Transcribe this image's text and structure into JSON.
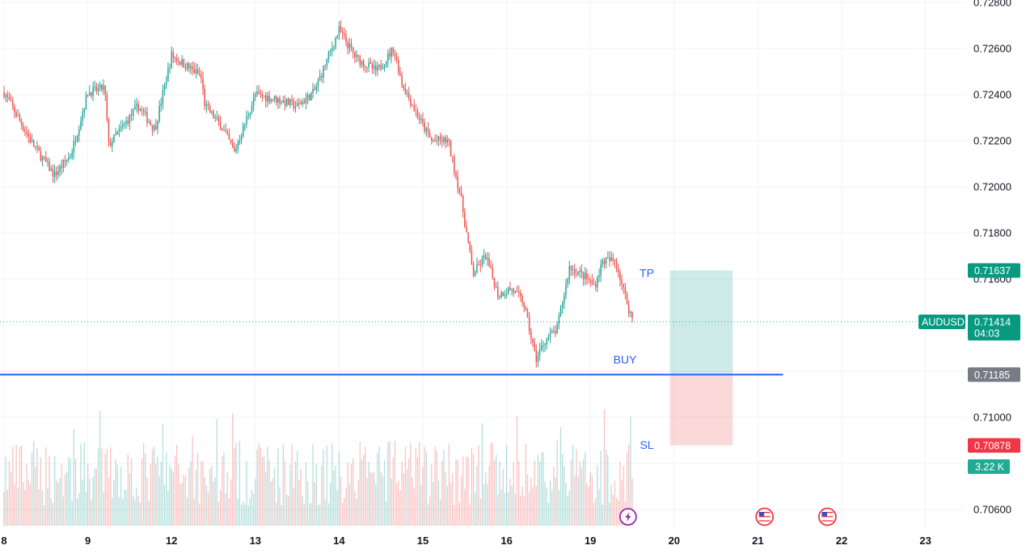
{
  "chart_data": {
    "type": "candlestick",
    "symbol": "AUDUSD",
    "y_axis": {
      "min": 0.7053,
      "max": 0.7281,
      "ticks": [
        {
          "value": 0.728,
          "label": "0.72800"
        },
        {
          "value": 0.726,
          "label": "0.72600"
        },
        {
          "value": 0.724,
          "label": "0.72400"
        },
        {
          "value": 0.722,
          "label": "0.72200"
        },
        {
          "value": 0.72,
          "label": "0.72000"
        },
        {
          "value": 0.718,
          "label": "0.71800"
        },
        {
          "value": 0.716,
          "label": "0.71600"
        },
        {
          "value": 0.71,
          "label": "0.71000"
        },
        {
          "value": 0.706,
          "label": "0.70600"
        }
      ],
      "partial_label": "0"
    },
    "x_axis": {
      "labels": [
        "8",
        "9",
        "12",
        "13",
        "14",
        "15",
        "16",
        "19",
        "20",
        "21",
        "22",
        "23"
      ]
    },
    "grid": true,
    "price_path": [
      [
        0,
        0.7241
      ],
      [
        0.35,
        0.7218
      ],
      [
        0.6,
        0.7205
      ],
      [
        0.8,
        0.7214
      ],
      [
        1.0,
        0.7241
      ],
      [
        1.2,
        0.7243
      ],
      [
        1.25,
        0.7218
      ],
      [
        1.6,
        0.7235
      ],
      [
        1.8,
        0.7225
      ],
      [
        2.0,
        0.7257
      ],
      [
        2.35,
        0.7248
      ],
      [
        2.4,
        0.7235
      ],
      [
        2.6,
        0.7226
      ],
      [
        2.75,
        0.7215
      ],
      [
        3.0,
        0.724
      ],
      [
        3.25,
        0.7238
      ],
      [
        3.5,
        0.7235
      ],
      [
        3.7,
        0.7241
      ],
      [
        4.0,
        0.7268
      ],
      [
        4.2,
        0.7256
      ],
      [
        4.45,
        0.725
      ],
      [
        4.65,
        0.726
      ],
      [
        4.75,
        0.7245
      ],
      [
        4.95,
        0.723
      ],
      [
        5.1,
        0.722
      ],
      [
        5.3,
        0.722
      ],
      [
        5.45,
        0.7196
      ],
      [
        5.6,
        0.7162
      ],
      [
        5.75,
        0.717
      ],
      [
        5.9,
        0.7153
      ],
      [
        6.05,
        0.7156
      ],
      [
        6.2,
        0.715
      ],
      [
        6.35,
        0.7125
      ],
      [
        6.45,
        0.7133
      ],
      [
        6.6,
        0.7138
      ],
      [
        6.75,
        0.7165
      ],
      [
        6.9,
        0.7162
      ],
      [
        7.05,
        0.7157
      ],
      [
        7.15,
        0.7168
      ],
      [
        7.3,
        0.7168
      ],
      [
        7.45,
        0.7148
      ],
      [
        7.5,
        0.7143
      ]
    ],
    "last_price": {
      "label": "AUDUSD",
      "value": "0.71414",
      "countdown": "04:03",
      "numeric": 0.71414
    },
    "levels": {
      "take_profit": {
        "label": "TP",
        "value": "0.71637",
        "numeric": 0.71637
      },
      "entry": {
        "label": "BUY",
        "value": "0.71185",
        "numeric": 0.71185
      },
      "stop_loss": {
        "label": "SL",
        "value": "0.70878",
        "numeric": 0.70878
      }
    },
    "position_zone": {
      "x_start": 7.95,
      "x_end": 8.7
    },
    "entry_line": {
      "x_start": 0,
      "x_end": 9.3
    },
    "volume": {
      "label": "3.22 K"
    },
    "event_icons": [
      {
        "icon": "lightning-icon",
        "x": 7.45
      },
      {
        "icon": "us-flag-icon",
        "x": 9.08
      },
      {
        "icon": "us-flag-icon",
        "x": 9.83
      }
    ],
    "colors": {
      "up": "#26a69a",
      "down": "#ef5350",
      "entry_line": "#2962ff",
      "label_blue": "#2962ff",
      "tp_zone": "rgba(38,166,154,0.22)",
      "sl_zone": "rgba(239,83,80,0.22)",
      "tp_tag": "#089981",
      "sl_tag": "#f23645",
      "entry_tag": "#787b86",
      "grid": "#f0f3fa",
      "text": "#131722"
    }
  }
}
